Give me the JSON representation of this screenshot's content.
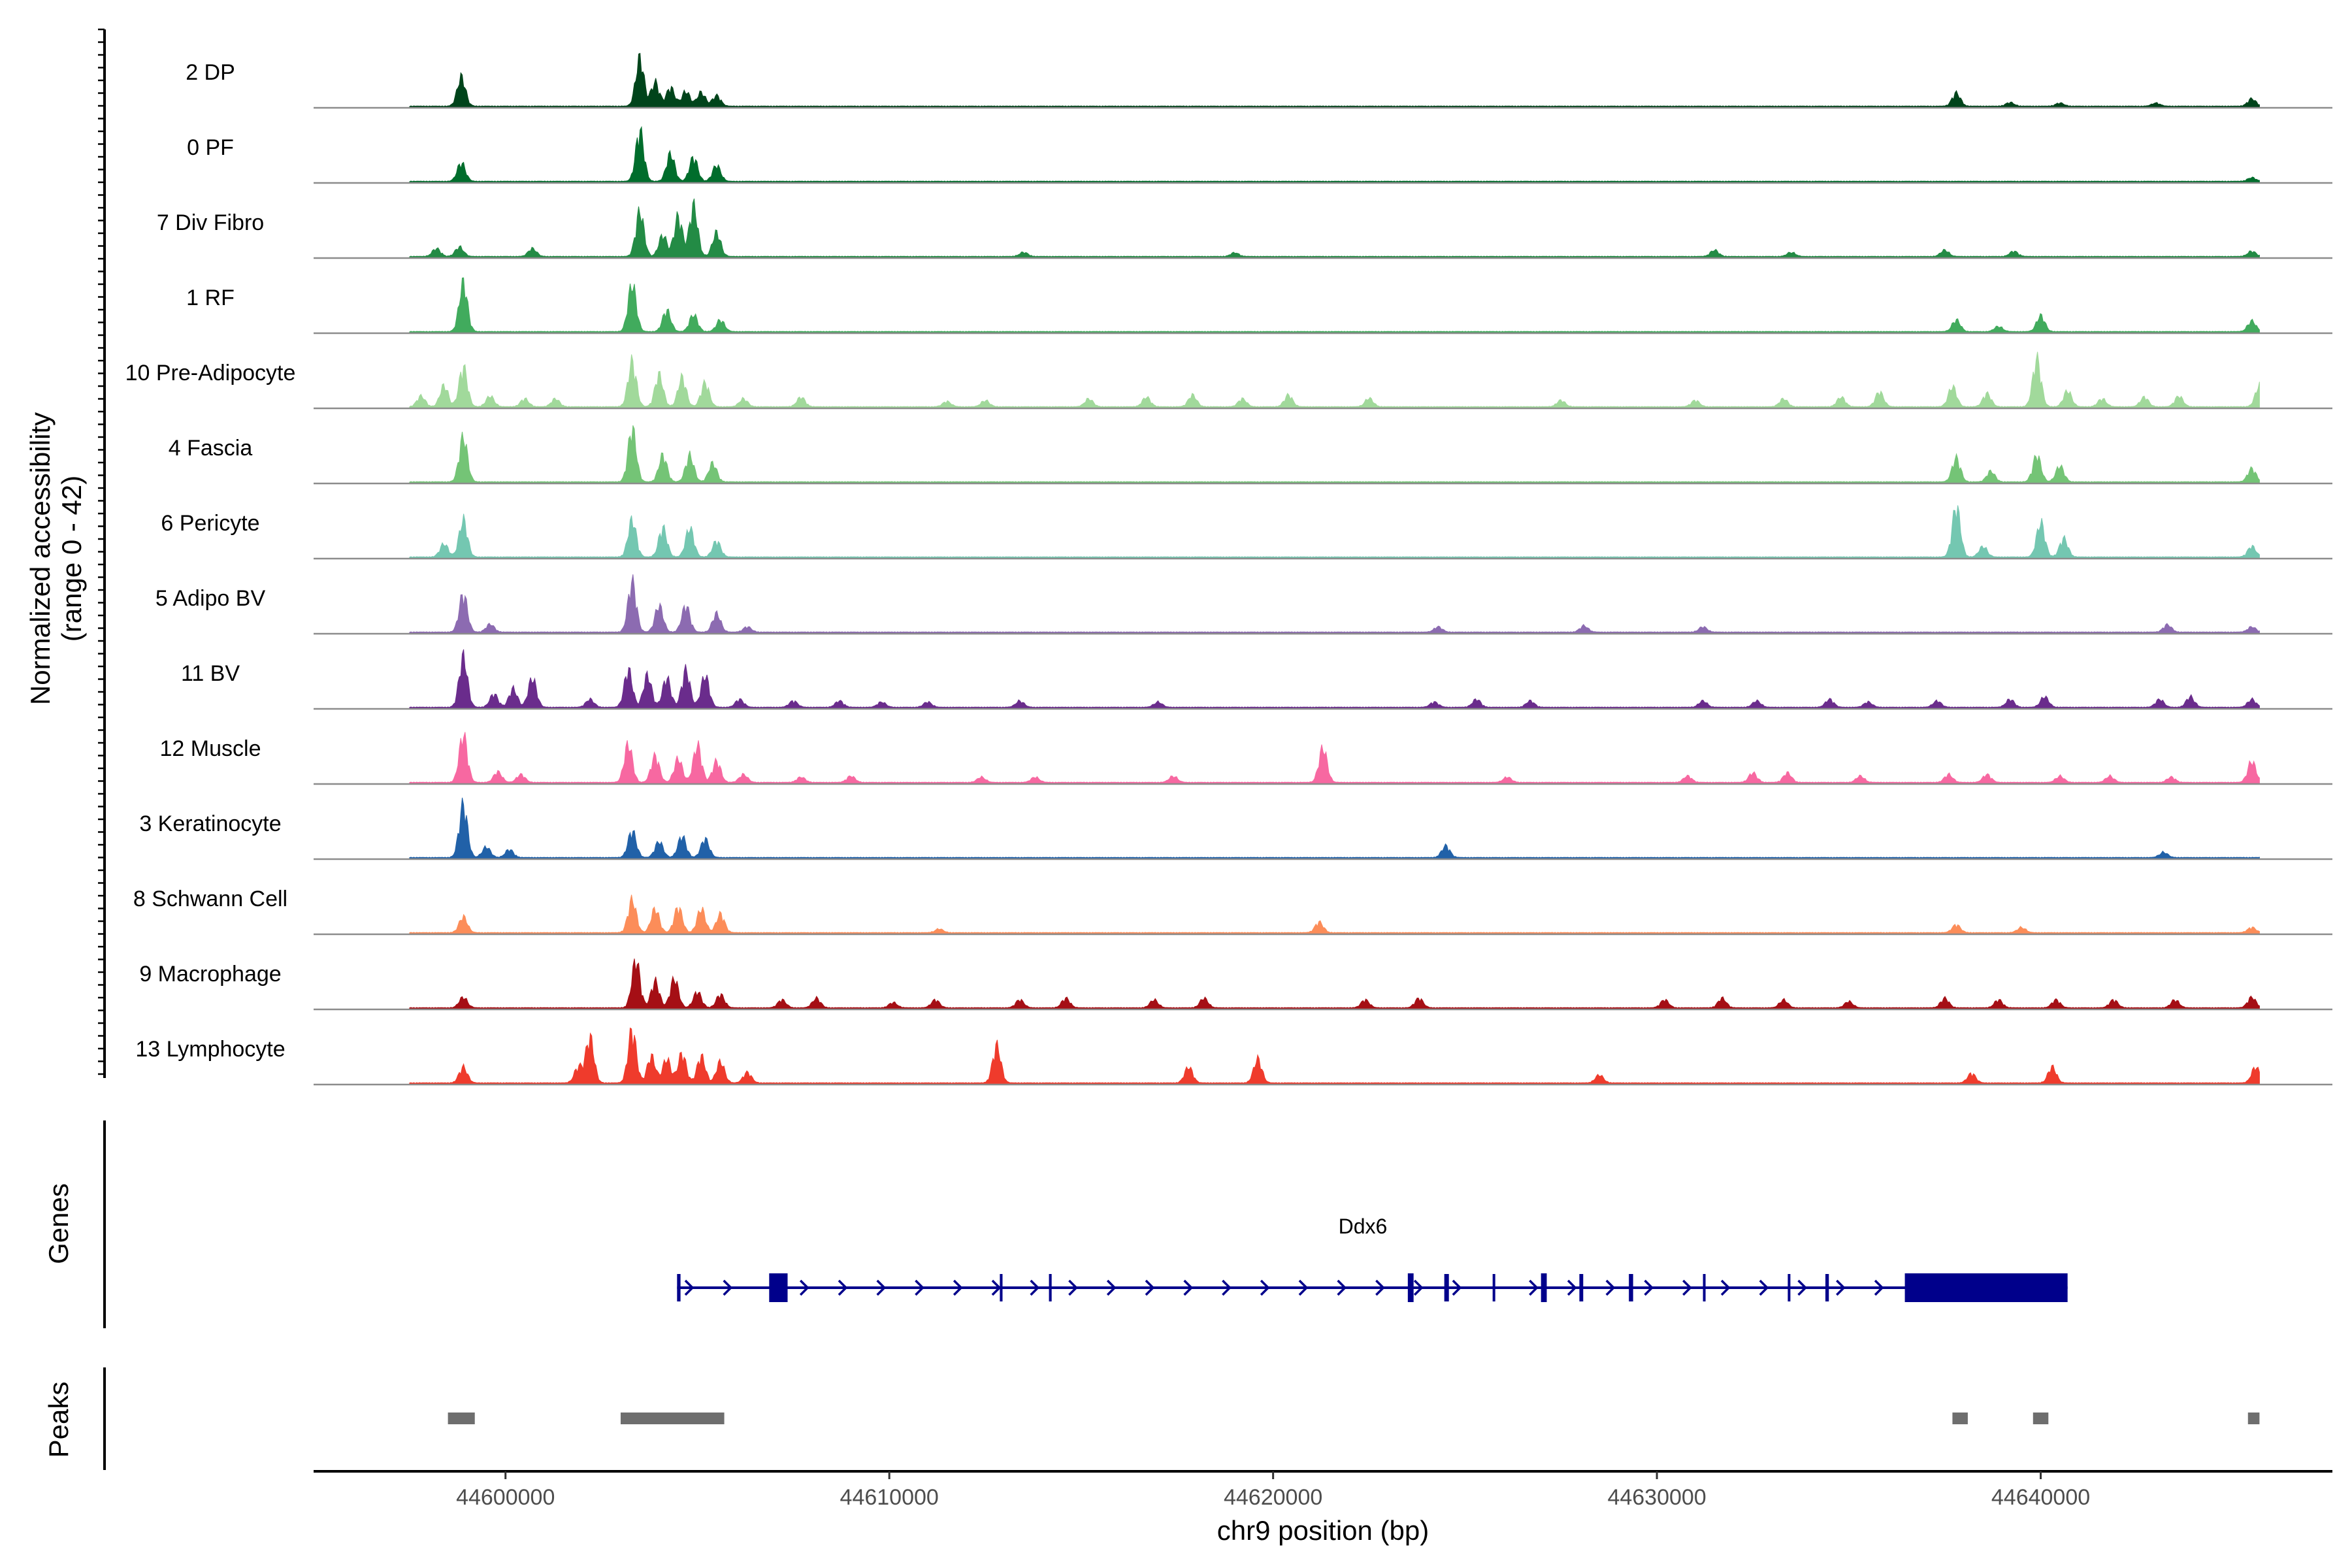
{
  "chart_data": {
    "type": "coverage_track",
    "y_axis_label_line1": "Normalized accessibility",
    "y_axis_label_line2": "(range 0 - 42)",
    "y_range": [
      0,
      42
    ],
    "x_axis_label": "chr9 position (bp)",
    "x_range": [
      44595000,
      44647600
    ],
    "x_ticks": [
      44600000,
      44610000,
      44620000,
      44630000,
      44640000
    ],
    "x_tick_labels": [
      "44600000",
      "44610000",
      "44620000",
      "44630000",
      "44640000"
    ],
    "tracks": [
      {
        "name": "2 DP",
        "color": "#00441b",
        "peaks": [
          [
            44598850,
            0.55
          ],
          [
            44603500,
            0.9
          ],
          [
            44603900,
            0.45
          ],
          [
            44604300,
            0.35
          ],
          [
            44604700,
            0.28
          ],
          [
            44605100,
            0.26
          ],
          [
            44605500,
            0.2
          ],
          [
            44637800,
            0.25
          ],
          [
            44639200,
            0.07
          ],
          [
            44640500,
            0.06
          ],
          [
            44643000,
            0.06
          ],
          [
            44645500,
            0.14
          ]
        ]
      },
      {
        "name": "0 PF",
        "color": "#006d2c",
        "peaks": [
          [
            44598850,
            0.35
          ],
          [
            44603500,
            0.95
          ],
          [
            44604300,
            0.52
          ],
          [
            44604900,
            0.45
          ],
          [
            44605500,
            0.3
          ],
          [
            44645500,
            0.07
          ]
        ]
      },
      {
        "name": "7 Div Fibro",
        "color": "#238b45",
        "peaks": [
          [
            44598200,
            0.15
          ],
          [
            44598800,
            0.18
          ],
          [
            44600700,
            0.15
          ],
          [
            44603500,
            0.85
          ],
          [
            44604100,
            0.4
          ],
          [
            44604500,
            0.75
          ],
          [
            44604900,
            0.95
          ],
          [
            44605500,
            0.45
          ],
          [
            44613500,
            0.08
          ],
          [
            44619000,
            0.07
          ],
          [
            44631500,
            0.12
          ],
          [
            44633500,
            0.08
          ],
          [
            44637500,
            0.12
          ],
          [
            44639300,
            0.1
          ],
          [
            44645500,
            0.1
          ]
        ]
      },
      {
        "name": "1 RF",
        "color": "#41ab5d",
        "peaks": [
          [
            44598900,
            0.92
          ],
          [
            44603300,
            0.9
          ],
          [
            44604200,
            0.4
          ],
          [
            44604900,
            0.32
          ],
          [
            44605600,
            0.22
          ],
          [
            44637800,
            0.22
          ],
          [
            44638900,
            0.1
          ],
          [
            44640000,
            0.3
          ],
          [
            44645500,
            0.2
          ]
        ]
      },
      {
        "name": "10 Pre-Adipocyte",
        "color": "#a1d99b",
        "peaks": [
          [
            44597800,
            0.2
          ],
          [
            44598400,
            0.4
          ],
          [
            44598900,
            0.75
          ],
          [
            44599600,
            0.2
          ],
          [
            44600500,
            0.15
          ],
          [
            44601300,
            0.15
          ],
          [
            44603300,
            0.85
          ],
          [
            44604000,
            0.6
          ],
          [
            44604600,
            0.55
          ],
          [
            44605200,
            0.45
          ],
          [
            44606200,
            0.15
          ],
          [
            44607700,
            0.18
          ],
          [
            44611500,
            0.1
          ],
          [
            44612500,
            0.12
          ],
          [
            44615200,
            0.15
          ],
          [
            44616700,
            0.18
          ],
          [
            44617900,
            0.22
          ],
          [
            44619200,
            0.15
          ],
          [
            44620400,
            0.22
          ],
          [
            44622500,
            0.16
          ],
          [
            44627500,
            0.12
          ],
          [
            44631000,
            0.12
          ],
          [
            44633300,
            0.15
          ],
          [
            44634800,
            0.18
          ],
          [
            44635800,
            0.28
          ],
          [
            44637700,
            0.38
          ],
          [
            44638600,
            0.25
          ],
          [
            44639900,
            0.9
          ],
          [
            44640700,
            0.3
          ],
          [
            44641600,
            0.15
          ],
          [
            44642700,
            0.18
          ],
          [
            44643600,
            0.2
          ],
          [
            44645700,
            0.4
          ]
        ]
      },
      {
        "name": "4 Fascia",
        "color": "#74c476",
        "peaks": [
          [
            44598900,
            0.85
          ],
          [
            44603300,
            1.0
          ],
          [
            44604100,
            0.5
          ],
          [
            44604800,
            0.5
          ],
          [
            44605400,
            0.35
          ],
          [
            44637800,
            0.45
          ],
          [
            44638700,
            0.2
          ],
          [
            44639900,
            0.5
          ],
          [
            44640500,
            0.3
          ],
          [
            44645500,
            0.25
          ]
        ]
      },
      {
        "name": "6 Pericyte",
        "color": "#74c7b1",
        "peaks": [
          [
            44598400,
            0.25
          ],
          [
            44598900,
            0.7
          ],
          [
            44603300,
            0.7
          ],
          [
            44604100,
            0.55
          ],
          [
            44604800,
            0.55
          ],
          [
            44605500,
            0.3
          ],
          [
            44637800,
            0.95
          ],
          [
            44638500,
            0.2
          ],
          [
            44640000,
            0.65
          ],
          [
            44640600,
            0.35
          ],
          [
            44645500,
            0.2
          ]
        ]
      },
      {
        "name": "5 Adipo BV",
        "color": "#8c6bb1",
        "peaks": [
          [
            44598900,
            0.72
          ],
          [
            44599600,
            0.15
          ],
          [
            44603300,
            0.95
          ],
          [
            44604000,
            0.5
          ],
          [
            44604700,
            0.5
          ],
          [
            44605500,
            0.35
          ],
          [
            44606300,
            0.1
          ],
          [
            44624300,
            0.1
          ],
          [
            44628100,
            0.12
          ],
          [
            44631200,
            0.1
          ],
          [
            44643300,
            0.14
          ],
          [
            44645500,
            0.1
          ]
        ]
      },
      {
        "name": "11 BV",
        "color": "#6a2c8c",
        "peaks": [
          [
            44598900,
            0.95
          ],
          [
            44599700,
            0.25
          ],
          [
            44600200,
            0.35
          ],
          [
            44600700,
            0.55
          ],
          [
            44602200,
            0.15
          ],
          [
            44603200,
            0.7
          ],
          [
            44603700,
            0.6
          ],
          [
            44604200,
            0.55
          ],
          [
            44604700,
            0.7
          ],
          [
            44605200,
            0.6
          ],
          [
            44606100,
            0.15
          ],
          [
            44607500,
            0.12
          ],
          [
            44608700,
            0.12
          ],
          [
            44609800,
            0.1
          ],
          [
            44611000,
            0.1
          ],
          [
            44613400,
            0.12
          ],
          [
            44617000,
            0.1
          ],
          [
            44624200,
            0.1
          ],
          [
            44625300,
            0.15
          ],
          [
            44626700,
            0.12
          ],
          [
            44631200,
            0.12
          ],
          [
            44632600,
            0.12
          ],
          [
            44634500,
            0.15
          ],
          [
            44635500,
            0.1
          ],
          [
            44637300,
            0.12
          ],
          [
            44639200,
            0.15
          ],
          [
            44640100,
            0.2
          ],
          [
            44643100,
            0.15
          ],
          [
            44643900,
            0.2
          ],
          [
            44645500,
            0.15
          ]
        ]
      },
      {
        "name": "12 Muscle",
        "color": "#f768a1",
        "peaks": [
          [
            44598900,
            0.9
          ],
          [
            44599800,
            0.2
          ],
          [
            44600400,
            0.15
          ],
          [
            44603200,
            0.72
          ],
          [
            44603900,
            0.5
          ],
          [
            44604500,
            0.45
          ],
          [
            44605000,
            0.7
          ],
          [
            44605500,
            0.4
          ],
          [
            44606200,
            0.15
          ],
          [
            44607700,
            0.1
          ],
          [
            44609000,
            0.12
          ],
          [
            44612400,
            0.1
          ],
          [
            44613800,
            0.1
          ],
          [
            44617400,
            0.12
          ],
          [
            44621300,
            0.65
          ],
          [
            44626100,
            0.1
          ],
          [
            44630800,
            0.12
          ],
          [
            44632500,
            0.18
          ],
          [
            44633400,
            0.18
          ],
          [
            44635300,
            0.12
          ],
          [
            44637600,
            0.15
          ],
          [
            44638600,
            0.15
          ],
          [
            44640500,
            0.12
          ],
          [
            44641800,
            0.12
          ],
          [
            44643400,
            0.1
          ],
          [
            44645500,
            0.4
          ]
        ]
      },
      {
        "name": "3 Keratinocyte",
        "color": "#2161a8",
        "peaks": [
          [
            44598900,
            1.0
          ],
          [
            44599500,
            0.2
          ],
          [
            44600100,
            0.15
          ],
          [
            44603300,
            0.5
          ],
          [
            44604000,
            0.3
          ],
          [
            44604600,
            0.4
          ],
          [
            44605200,
            0.35
          ],
          [
            44624500,
            0.22
          ],
          [
            44643200,
            0.1
          ]
        ]
      },
      {
        "name": "8 Schwann Cell",
        "color": "#fc8d59",
        "peaks": [
          [
            44598900,
            0.3
          ],
          [
            44603300,
            0.62
          ],
          [
            44603900,
            0.45
          ],
          [
            44604500,
            0.48
          ],
          [
            44605100,
            0.45
          ],
          [
            44605600,
            0.35
          ],
          [
            44611300,
            0.07
          ],
          [
            44621200,
            0.2
          ],
          [
            44637800,
            0.15
          ],
          [
            44639500,
            0.1
          ],
          [
            44645500,
            0.1
          ]
        ]
      },
      {
        "name": "9 Macrophage",
        "color": "#a50f15",
        "peaks": [
          [
            44598900,
            0.2
          ],
          [
            44603400,
            0.9
          ],
          [
            44603900,
            0.5
          ],
          [
            44604400,
            0.55
          ],
          [
            44605000,
            0.3
          ],
          [
            44605600,
            0.25
          ],
          [
            44607200,
            0.15
          ],
          [
            44608100,
            0.18
          ],
          [
            44610100,
            0.1
          ],
          [
            44611200,
            0.15
          ],
          [
            44613400,
            0.15
          ],
          [
            44614600,
            0.18
          ],
          [
            44616900,
            0.15
          ],
          [
            44618200,
            0.18
          ],
          [
            44622400,
            0.15
          ],
          [
            44623800,
            0.18
          ],
          [
            44630200,
            0.15
          ],
          [
            44631700,
            0.18
          ],
          [
            44633300,
            0.15
          ],
          [
            44635000,
            0.12
          ],
          [
            44637500,
            0.18
          ],
          [
            44638900,
            0.15
          ],
          [
            44640400,
            0.15
          ],
          [
            44641900,
            0.15
          ],
          [
            44643500,
            0.15
          ],
          [
            44645500,
            0.2
          ]
        ]
      },
      {
        "name": "13 Lymphocyte",
        "color": "#ef3b2c",
        "peaks": [
          [
            44598900,
            0.3
          ],
          [
            44601900,
            0.3
          ],
          [
            44602200,
            0.85
          ],
          [
            44603300,
            1.0
          ],
          [
            44603800,
            0.5
          ],
          [
            44604200,
            0.45
          ],
          [
            44604600,
            0.55
          ],
          [
            44605100,
            0.5
          ],
          [
            44605600,
            0.4
          ],
          [
            44606300,
            0.2
          ],
          [
            44612800,
            0.7
          ],
          [
            44617800,
            0.3
          ],
          [
            44619600,
            0.45
          ],
          [
            44628500,
            0.15
          ],
          [
            44638200,
            0.18
          ],
          [
            44640300,
            0.3
          ],
          [
            44645600,
            0.3
          ]
        ]
      }
    ],
    "genes_label": "Genes",
    "gene": {
      "name": "Ddx6",
      "color": "#00008b",
      "start": 44604470,
      "end": 44640700,
      "strand": "+",
      "exons": [
        [
          44604470,
          44604560
        ],
        [
          44606870,
          44607350
        ],
        [
          44612880,
          44612950
        ],
        [
          44614160,
          44614230
        ],
        [
          44623510,
          44623660
        ],
        [
          44624460,
          44624580
        ],
        [
          44625720,
          44625780
        ],
        [
          44626980,
          44627130
        ],
        [
          44627980,
          44628080
        ],
        [
          44629270,
          44629380
        ],
        [
          44631200,
          44631250
        ],
        [
          44633410,
          44633470
        ],
        [
          44634390,
          44634480
        ],
        [
          44636460,
          44640700
        ]
      ]
    },
    "peaks_label": "Peaks",
    "peak_color": "#6e6e6e",
    "peak_regions": [
      [
        44598500,
        44599200
      ],
      [
        44603000,
        44605700
      ],
      [
        44637700,
        44638100
      ],
      [
        44639800,
        44640200
      ],
      [
        44645400,
        44645700
      ]
    ]
  }
}
